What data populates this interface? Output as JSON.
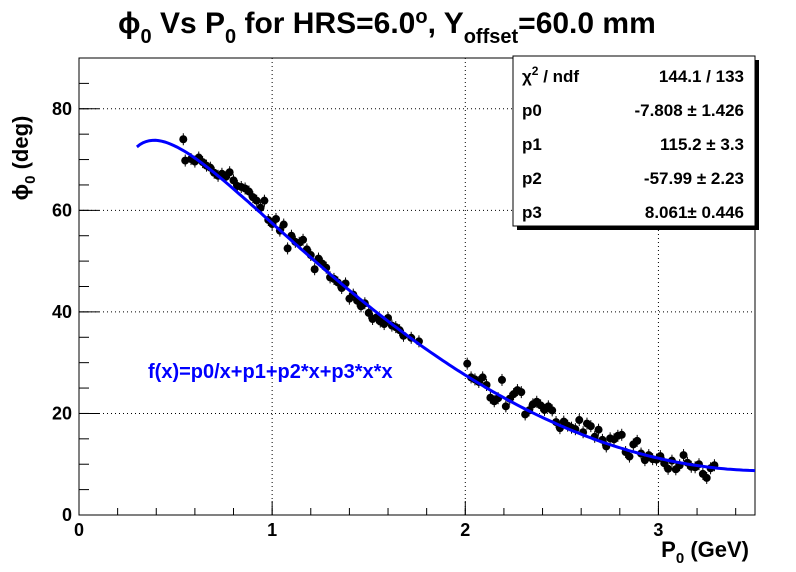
{
  "chart_data": {
    "type": "scatter",
    "title": {
      "phi": "ϕ",
      "phi_sub": "0",
      "vs": " Vs P",
      "p_sub": "0",
      "for_hrs": " for HRS=6.0",
      "deg": "o",
      "y": ", Y",
      "y_sub": "offset",
      "y_val": "=60.0 mm"
    },
    "ylabel": {
      "phi": "ϕ",
      "sub": "0",
      "rest": " (deg)"
    },
    "xlabel": {
      "p": "P",
      "sub": "0",
      "rest": " (GeV)"
    },
    "xlim": [
      0,
      3.5
    ],
    "ylim": [
      0,
      90
    ],
    "x_ticks": [
      "0",
      "1",
      "2",
      "3"
    ],
    "y_ticks": [
      "0",
      "20",
      "40",
      "60",
      "80"
    ],
    "grid": true,
    "fit_label": "f(x)=p0/x+p1+p2*x+p3*x*x",
    "fit_color": "#0000ff",
    "marker_color": "#000000",
    "fit_params": {
      "p0": -7.808,
      "p1": 115.2,
      "p2": -57.99,
      "p3": 8.061
    },
    "fit_range": [
      0.3,
      3.5
    ],
    "stats_box": [
      {
        "name_prefix": "χ",
        "name_sup": "2",
        "name_suffix": " / ndf",
        "value": "144.1 / 133"
      },
      {
        "name_prefix": "p0",
        "value": "-7.808 ± 1.426"
      },
      {
        "name_prefix": "p1",
        "value": "115.2 ± 3.3"
      },
      {
        "name_prefix": "p2",
        "value": "-57.99 ± 2.23"
      },
      {
        "name_prefix": "p3",
        "value": "8.061± 0.446"
      }
    ],
    "series": [
      {
        "points": [
          [
            0.54,
            74.0
          ],
          [
            0.55,
            69.8
          ],
          [
            0.58,
            70.1
          ],
          [
            0.6,
            69.6
          ],
          [
            0.62,
            70.4
          ],
          [
            0.64,
            69.5
          ],
          [
            0.66,
            68.8
          ],
          [
            0.68,
            68.4
          ],
          [
            0.7,
            67.4
          ],
          [
            0.72,
            66.8
          ],
          [
            0.74,
            67.2
          ],
          [
            0.76,
            66.6
          ],
          [
            0.78,
            67.5
          ],
          [
            0.8,
            65.9
          ],
          [
            0.82,
            64.8
          ],
          [
            0.84,
            64.6
          ],
          [
            0.86,
            64.3
          ],
          [
            0.88,
            63.7
          ],
          [
            0.9,
            62.6
          ],
          [
            0.92,
            61.9
          ],
          [
            0.94,
            60.5
          ],
          [
            0.96,
            61.9
          ],
          [
            0.98,
            58.1
          ],
          [
            1.0,
            57.3
          ],
          [
            1.02,
            58.3
          ],
          [
            1.04,
            56.0
          ],
          [
            1.06,
            57.2
          ],
          [
            1.08,
            52.5
          ],
          [
            1.1,
            55.0
          ],
          [
            1.12,
            53.8
          ],
          [
            1.14,
            53.6
          ],
          [
            1.16,
            54.2
          ],
          [
            1.18,
            52.3
          ],
          [
            1.2,
            51.2
          ],
          [
            1.22,
            48.4
          ],
          [
            1.24,
            50.5
          ],
          [
            1.26,
            49.5
          ],
          [
            1.28,
            48.7
          ],
          [
            1.3,
            46.8
          ],
          [
            1.32,
            46.5
          ],
          [
            1.34,
            45.8
          ],
          [
            1.36,
            44.7
          ],
          [
            1.38,
            45.6
          ],
          [
            1.4,
            42.6
          ],
          [
            1.42,
            43.4
          ],
          [
            1.44,
            42.2
          ],
          [
            1.46,
            41.1
          ],
          [
            1.48,
            41.7
          ],
          [
            1.5,
            39.8
          ],
          [
            1.52,
            38.6
          ],
          [
            1.54,
            38.9
          ],
          [
            1.56,
            38.1
          ],
          [
            1.58,
            37.6
          ],
          [
            1.6,
            38.8
          ],
          [
            1.62,
            37.3
          ],
          [
            1.64,
            37.0
          ],
          [
            1.66,
            36.4
          ],
          [
            1.68,
            35.3
          ],
          [
            1.72,
            34.9
          ],
          [
            1.76,
            34.2
          ],
          [
            2.01,
            29.8
          ],
          [
            2.03,
            27.1
          ],
          [
            2.05,
            26.7
          ],
          [
            2.07,
            26.2
          ],
          [
            2.09,
            27.1
          ],
          [
            2.11,
            25.6
          ],
          [
            2.13,
            23.1
          ],
          [
            2.15,
            22.4
          ],
          [
            2.17,
            23.0
          ],
          [
            2.19,
            26.6
          ],
          [
            2.21,
            21.4
          ],
          [
            2.23,
            22.9
          ],
          [
            2.25,
            23.8
          ],
          [
            2.27,
            24.6
          ],
          [
            2.29,
            24.2
          ],
          [
            2.31,
            19.8
          ],
          [
            2.33,
            20.6
          ],
          [
            2.35,
            21.8
          ],
          [
            2.37,
            22.3
          ],
          [
            2.39,
            21.6
          ],
          [
            2.41,
            20.7
          ],
          [
            2.43,
            21.4
          ],
          [
            2.45,
            20.6
          ],
          [
            2.47,
            18.3
          ],
          [
            2.49,
            17.1
          ],
          [
            2.51,
            18.4
          ],
          [
            2.53,
            17.6
          ],
          [
            2.55,
            17.2
          ],
          [
            2.57,
            16.9
          ],
          [
            2.59,
            18.7
          ],
          [
            2.61,
            16.3
          ],
          [
            2.63,
            18.0
          ],
          [
            2.65,
            17.5
          ],
          [
            2.67,
            15.4
          ],
          [
            2.69,
            16.8
          ],
          [
            2.71,
            14.8
          ],
          [
            2.73,
            13.5
          ],
          [
            2.75,
            15.1
          ],
          [
            2.77,
            14.9
          ],
          [
            2.79,
            15.6
          ],
          [
            2.81,
            15.8
          ],
          [
            2.83,
            12.4
          ],
          [
            2.85,
            11.5
          ],
          [
            2.87,
            13.9
          ],
          [
            2.89,
            14.6
          ],
          [
            2.91,
            12.1
          ],
          [
            2.93,
            10.8
          ],
          [
            2.95,
            11.8
          ],
          [
            2.97,
            11.0
          ],
          [
            2.99,
            10.9
          ],
          [
            3.01,
            11.6
          ],
          [
            3.03,
            10.2
          ],
          [
            3.05,
            9.1
          ],
          [
            3.07,
            10.7
          ],
          [
            3.09,
            9.0
          ],
          [
            3.11,
            9.8
          ],
          [
            3.13,
            11.8
          ],
          [
            3.15,
            10.3
          ],
          [
            3.17,
            9.5
          ],
          [
            3.19,
            9.4
          ],
          [
            3.21,
            10.0
          ],
          [
            3.23,
            8.1
          ],
          [
            3.25,
            7.3
          ],
          [
            3.27,
            9.2
          ],
          [
            3.29,
            9.8
          ]
        ]
      }
    ]
  }
}
